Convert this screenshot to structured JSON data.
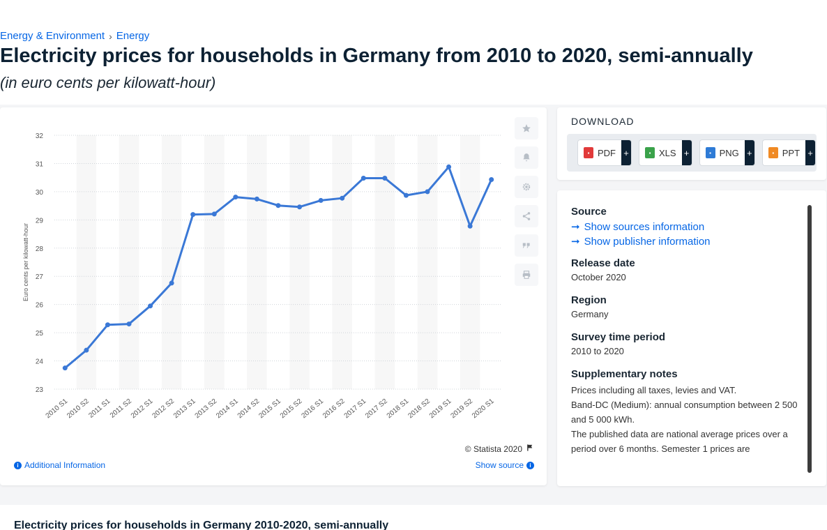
{
  "breadcrumb": {
    "level1": "Energy & Environment",
    "separator": "›",
    "level2": "Energy"
  },
  "page_title": "Electricity prices for households in Germany from 2010 to 2020, semi-annually",
  "page_subtitle": "(in euro cents per kilowatt-hour)",
  "chart_card": {
    "credit": "© Statista 2020",
    "additional_info": "Additional Information",
    "show_source": "Show source"
  },
  "tools": [
    "star-icon",
    "bell-icon",
    "gear-icon",
    "share-icon",
    "quote-icon",
    "print-icon"
  ],
  "download": {
    "title": "DOWNLOAD",
    "buttons": [
      {
        "label": "PDF",
        "color": "#e13a3a"
      },
      {
        "label": "XLS",
        "color": "#3aa24a"
      },
      {
        "label": "PNG",
        "color": "#2e7bd6"
      },
      {
        "label": "PPT",
        "color": "#f08a24"
      }
    ],
    "plus": "+"
  },
  "source_panel": {
    "source_heading": "Source",
    "show_sources": "Show sources information",
    "show_publisher": "Show publisher information",
    "release_heading": "Release date",
    "release_value": "October 2020",
    "region_heading": "Region",
    "region_value": "Germany",
    "survey_heading": "Survey time period",
    "survey_value": "2010 to 2020",
    "notes_heading": "Supplementary notes",
    "notes": [
      "Prices including all taxes, levies and VAT.",
      "Band-DC (Medium): annual consumption between 2 500 and 5 000 kWh.",
      "The published data are national average prices over a period over 6 months. Semester 1 prices are"
    ]
  },
  "bottom": {
    "title": "Electricity prices for households in Germany 2010-2020, semi-annually"
  },
  "chart_data": {
    "type": "line",
    "title": "",
    "xlabel": "",
    "ylabel": "Euro cents per kilowatt-hour",
    "ylim": [
      23,
      32
    ],
    "yticks": [
      23,
      24,
      25,
      26,
      27,
      28,
      29,
      30,
      31,
      32
    ],
    "grid": true,
    "line_color": "#3a78d6",
    "categories": [
      "2010 S1",
      "2010 S2",
      "2011 S1",
      "2011 S2",
      "2012 S1",
      "2012 S2",
      "2013 S1",
      "2013 S2",
      "2014 S1",
      "2014 S2",
      "2015 S1",
      "2015 S2",
      "2016 S1",
      "2016 S2",
      "2017 S1",
      "2017 S2",
      "2018 S1",
      "2018 S2",
      "2019 S1",
      "2019 S2",
      "2020 S1"
    ],
    "series": [
      {
        "values": [
          23.75,
          24.38,
          25.28,
          25.31,
          25.95,
          26.76,
          29.19,
          29.21,
          29.81,
          29.74,
          29.51,
          29.46,
          29.69,
          29.77,
          30.48,
          30.48,
          29.87,
          30.0,
          30.88,
          28.78,
          30.43
        ]
      }
    ]
  }
}
